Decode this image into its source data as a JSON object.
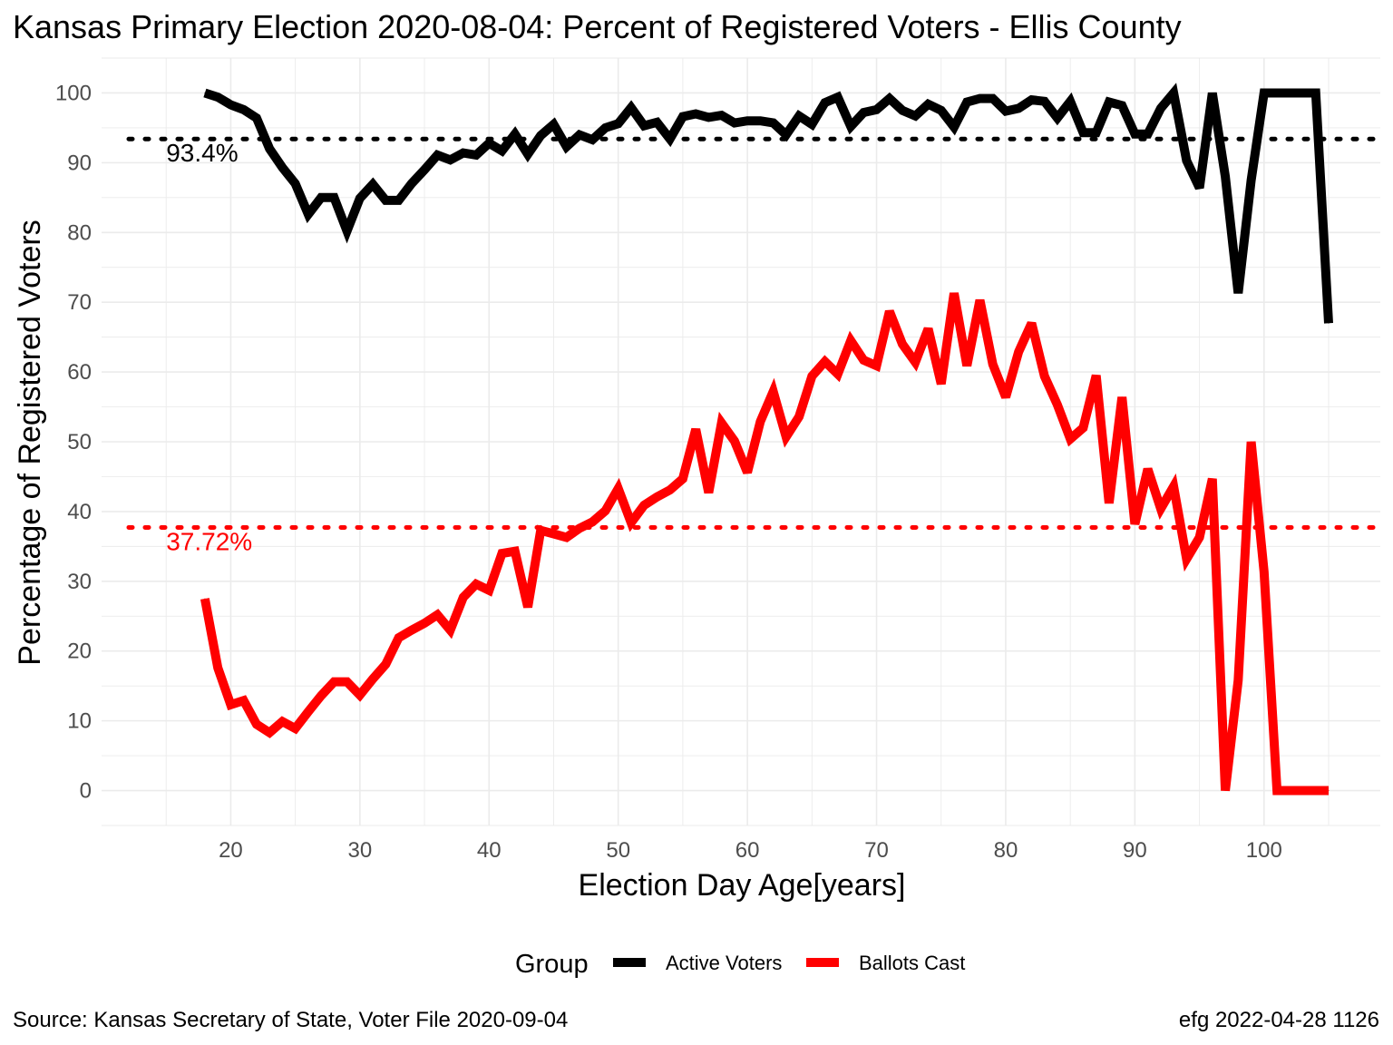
{
  "chart_data": {
    "type": "line",
    "title": "Kansas Primary Election 2020-08-04:  Percent of Registered Voters - Ellis County",
    "xlabel": "Election Day Age[years]",
    "ylabel": "Percentage of Registered Voters",
    "xlim": [
      10,
      109
    ],
    "ylim": [
      -5,
      105
    ],
    "x_ticks": [
      20,
      30,
      40,
      50,
      60,
      70,
      80,
      90,
      100
    ],
    "y_ticks": [
      0,
      10,
      20,
      30,
      40,
      50,
      60,
      70,
      80,
      90,
      100
    ],
    "grid": true,
    "legend": {
      "title": "Group",
      "position": "bottom",
      "entries": [
        "Active Voters",
        "Ballots Cast"
      ]
    },
    "series": [
      {
        "name": "Active Voters",
        "color": "#000000",
        "x": [
          18,
          19,
          20,
          21,
          22,
          23,
          24,
          25,
          26,
          27,
          28,
          29,
          30,
          31,
          32,
          33,
          34,
          35,
          36,
          37,
          38,
          39,
          40,
          41,
          42,
          43,
          44,
          45,
          46,
          47,
          48,
          49,
          50,
          51,
          52,
          53,
          54,
          55,
          56,
          57,
          58,
          59,
          60,
          61,
          62,
          63,
          64,
          65,
          66,
          67,
          68,
          69,
          70,
          71,
          72,
          73,
          74,
          75,
          76,
          77,
          78,
          79,
          80,
          81,
          82,
          83,
          84,
          85,
          86,
          87,
          88,
          89,
          90,
          91,
          92,
          93,
          94,
          95,
          96,
          97,
          98,
          99,
          100,
          101,
          102,
          103,
          104,
          105
        ],
        "values": [
          100,
          99.4,
          98.3,
          97.6,
          96.4,
          92,
          89.3,
          87,
          82.6,
          85,
          85,
          80.2,
          84.9,
          86.9,
          84.6,
          84.6,
          87,
          89,
          91.1,
          90.4,
          91.4,
          91.1,
          92.8,
          91.7,
          94.1,
          91.2,
          93.9,
          95.5,
          92.3,
          94,
          93.3,
          95,
          95.6,
          97.9,
          95.3,
          95.8,
          93.4,
          96.6,
          97,
          96.5,
          96.8,
          95.7,
          96,
          96,
          95.7,
          94,
          96.7,
          95.5,
          98.6,
          99.4,
          95.2,
          97.2,
          97.6,
          99.2,
          97.5,
          96.7,
          98.4,
          97.5,
          95.1,
          98.7,
          99.2,
          99.2,
          97.4,
          97.8,
          99,
          98.8,
          96.4,
          98.8,
          94.3,
          94.3,
          98.7,
          98.2,
          94.1,
          94.1,
          97.8,
          100,
          90.3,
          86.4,
          100,
          88,
          71.3,
          87.5,
          100,
          100,
          100,
          100,
          100,
          67
        ]
      },
      {
        "name": "Ballots Cast",
        "color": "#ff0000",
        "x": [
          18,
          19,
          20,
          21,
          22,
          23,
          24,
          25,
          26,
          27,
          28,
          29,
          30,
          31,
          32,
          33,
          34,
          35,
          36,
          37,
          38,
          39,
          40,
          41,
          42,
          43,
          44,
          45,
          46,
          47,
          48,
          49,
          50,
          51,
          52,
          53,
          54,
          55,
          56,
          57,
          58,
          59,
          60,
          61,
          62,
          63,
          64,
          65,
          66,
          67,
          68,
          69,
          70,
          71,
          72,
          73,
          74,
          75,
          76,
          77,
          78,
          79,
          80,
          81,
          82,
          83,
          84,
          85,
          86,
          87,
          88,
          89,
          90,
          91,
          92,
          93,
          94,
          95,
          96,
          97,
          98,
          99,
          100,
          101,
          102,
          103,
          104,
          105
        ],
        "values": [
          27.5,
          17.6,
          12.3,
          12.9,
          9.5,
          8.3,
          9.9,
          8.9,
          11.3,
          13.6,
          15.6,
          15.6,
          13.7,
          16,
          18.1,
          21.9,
          23,
          24,
          25.2,
          23,
          27.7,
          29.6,
          28.7,
          34,
          34.3,
          26.3,
          37.3,
          36.8,
          36.3,
          37.6,
          38.5,
          40.1,
          43.3,
          38.4,
          40.9,
          42.1,
          43.1,
          44.7,
          51.8,
          42.7,
          52.7,
          50.1,
          45.6,
          52.9,
          57.2,
          50.7,
          53.6,
          59.4,
          61.5,
          59.7,
          64.5,
          61.7,
          60.9,
          68.7,
          64,
          61.4,
          66.2,
          58.3,
          71.3,
          60.9,
          70.3,
          61.1,
          56.4,
          62.9,
          67,
          59.4,
          55.3,
          50.4,
          52,
          59.5,
          41.2,
          56.4,
          38.2,
          46.1,
          40.4,
          43.6,
          33.2,
          36.3,
          44.7,
          0,
          15.8,
          50,
          31.4,
          0,
          0,
          0,
          0,
          0
        ]
      }
    ],
    "reference_lines": [
      {
        "value": 93.4,
        "label": "93.4%",
        "color": "#000000",
        "style": "dotted"
      },
      {
        "value": 37.72,
        "label": "37.72%",
        "color": "#ff0000",
        "style": "dotted"
      }
    ]
  },
  "footer": {
    "source": "Source:  Kansas Secretary of State, Voter File  2020-09-04",
    "credit": "efg 2022-04-28 1126"
  }
}
